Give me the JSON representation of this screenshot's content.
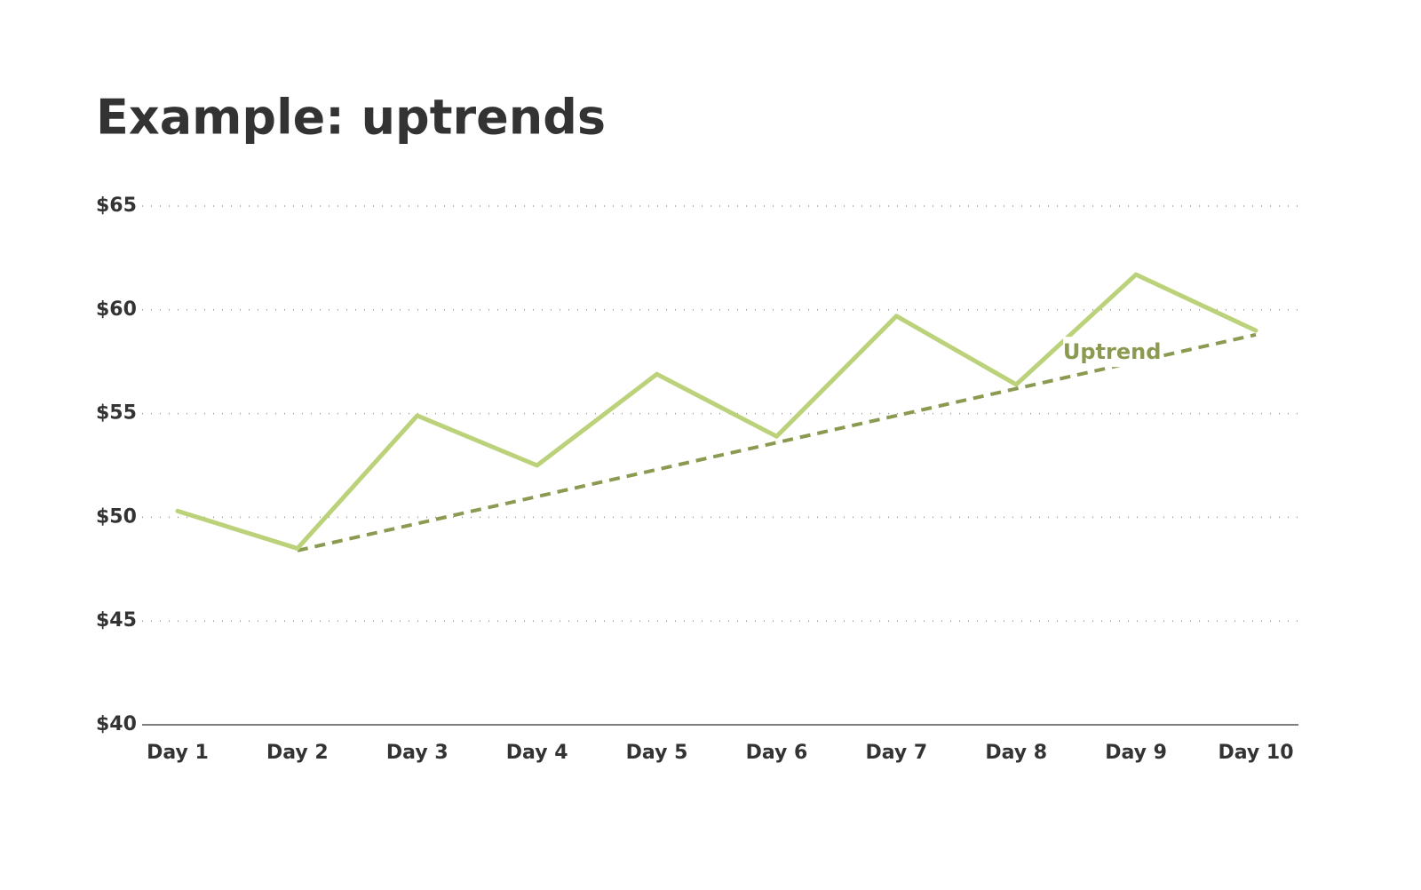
{
  "chart_data": {
    "type": "line",
    "title": "Example: uptrends",
    "categories": [
      "Day 1",
      "Day 2",
      "Day 3",
      "Day 4",
      "Day 5",
      "Day 6",
      "Day 7",
      "Day 8",
      "Day 9",
      "Day 10"
    ],
    "values": [
      50.3,
      48.5,
      54.9,
      52.5,
      56.9,
      53.9,
      59.7,
      56.4,
      61.7,
      59.0
    ],
    "color": "#bcd27a",
    "trendline": {
      "label": "Uptrend",
      "color": "#8a9a50",
      "values": [
        null,
        48.4,
        49.7,
        51.0,
        52.3,
        53.6,
        54.9,
        56.2,
        57.5,
        58.8
      ]
    },
    "ylim": [
      40,
      65
    ],
    "yticks": [
      {
        "value": 40,
        "label": "$40"
      },
      {
        "value": 45,
        "label": "$45"
      },
      {
        "value": 50,
        "label": "$50"
      },
      {
        "value": 55,
        "label": "$55"
      },
      {
        "value": 60,
        "label": "$60"
      },
      {
        "value": 65,
        "label": "$65"
      }
    ],
    "grid": true
  }
}
